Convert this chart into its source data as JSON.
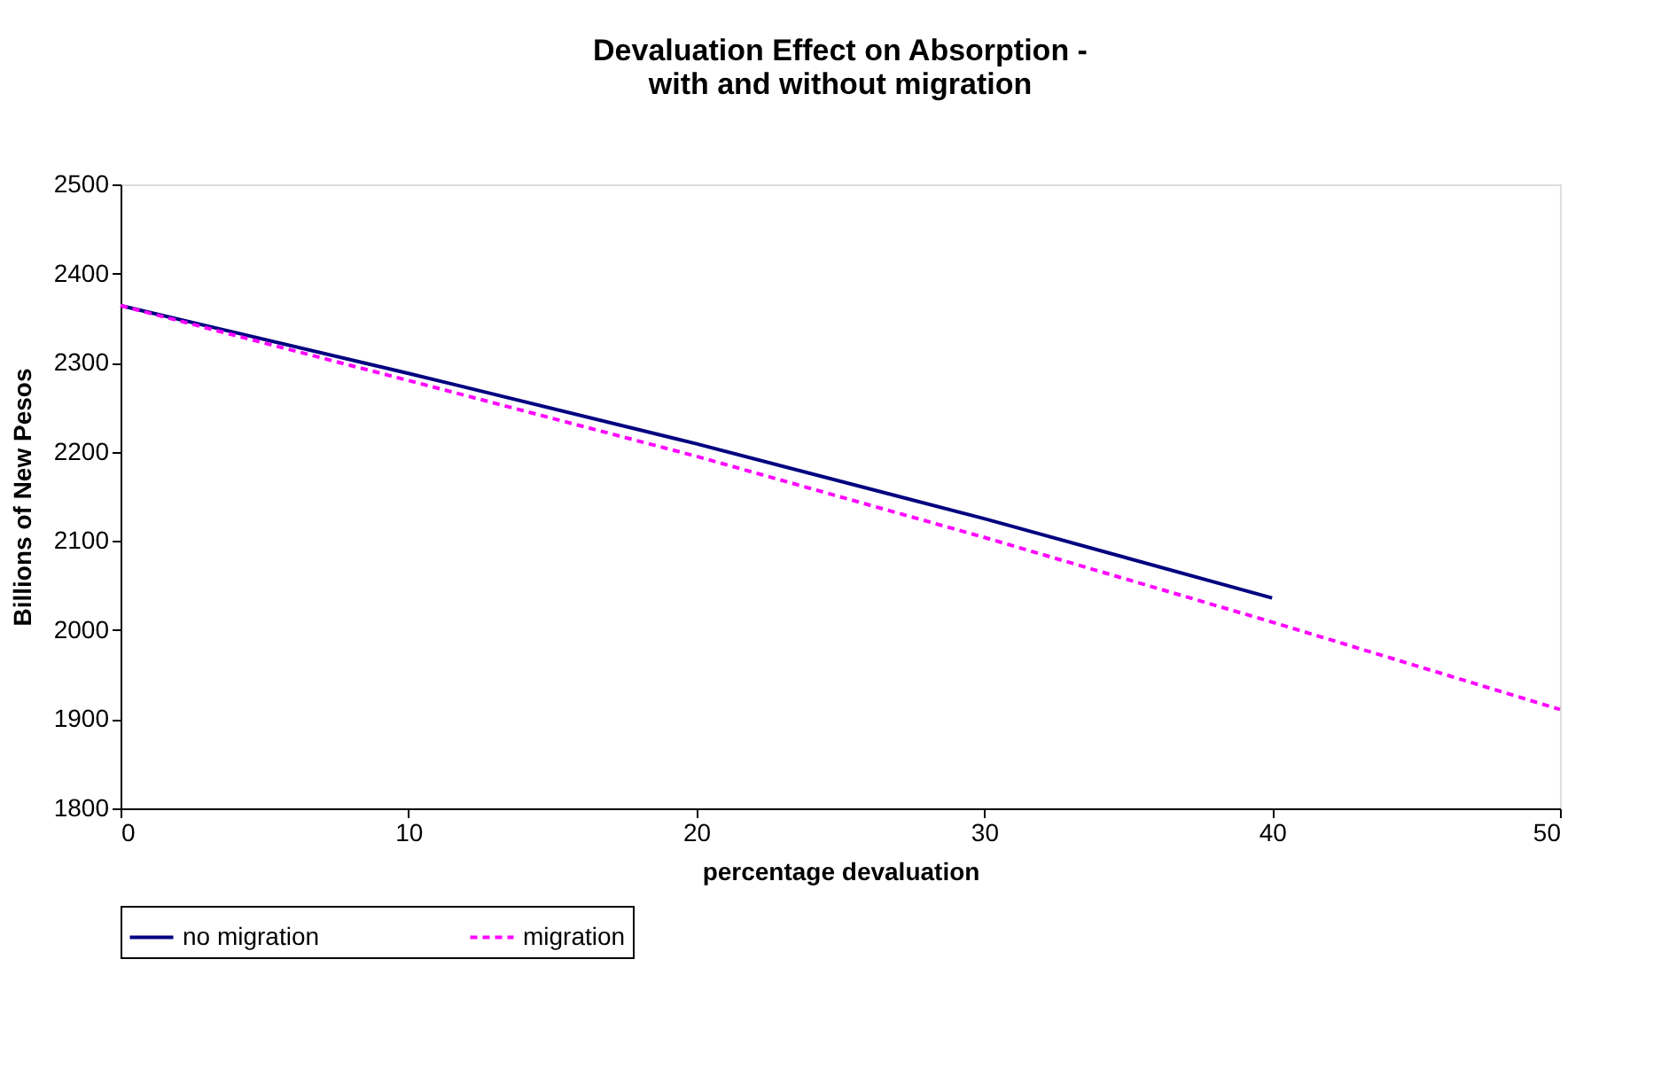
{
  "chart_data": {
    "type": "line",
    "title": [
      "Devaluation Effect on Absorption -",
      "with and without migration"
    ],
    "xlabel": "percentage devaluation",
    "ylabel": "Billions of New Pesos",
    "x": [
      0,
      10,
      20,
      30,
      40,
      50
    ],
    "series": [
      {
        "name": "no migration",
        "color": "#000080",
        "line_style": "solid",
        "values": [
          2364,
          2288,
          2209,
          2125,
          2036,
          null
        ]
      },
      {
        "name": "migration",
        "color": "#ff00ff",
        "line_style": "dashed",
        "values": [
          2364,
          2280,
          2195,
          2104,
          2009,
          1911
        ]
      }
    ],
    "xlim": [
      0,
      50
    ],
    "xticks": [
      0,
      10,
      20,
      30,
      40,
      50
    ],
    "ylim": [
      1800,
      2500
    ],
    "yticks": [
      1800,
      1900,
      2000,
      2100,
      2200,
      2300,
      2400,
      2500
    ],
    "grid": false,
    "legend": "bottom",
    "marker": "none"
  }
}
